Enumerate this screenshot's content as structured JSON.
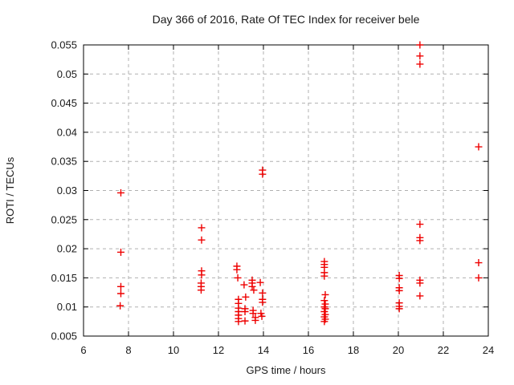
{
  "window": {
    "background": "#ffffff",
    "border_color": "#000000",
    "grid_color": "#b0b0b0",
    "text_color": "#1a1a1a"
  },
  "chart_data": {
    "type": "scatter",
    "title": "Day 366 of 2016, Rate Of TEC Index for receiver bele",
    "xlabel": "GPS time / hours",
    "ylabel": "ROTI / TECUs",
    "xlim": [
      6,
      24
    ],
    "ylim": [
      0.005,
      0.055
    ],
    "xticks": [
      6,
      8,
      10,
      12,
      14,
      16,
      18,
      20,
      22,
      24
    ],
    "yticks": [
      0.005,
      0.01,
      0.015,
      0.02,
      0.025,
      0.03,
      0.035,
      0.04,
      0.045,
      0.05,
      0.055
    ],
    "grid": {
      "show": true,
      "style": "dashed",
      "color": "#b0b0b0"
    },
    "legend": {
      "show": false
    },
    "marker": {
      "shape": "plus",
      "color": "#ee0000",
      "size": 9
    },
    "series": [
      {
        "name": "ROTI",
        "points": [
          [
            7.66,
            0.0296
          ],
          [
            7.66,
            0.0194
          ],
          [
            7.66,
            0.0135
          ],
          [
            7.66,
            0.0123
          ],
          [
            7.63,
            0.0102
          ],
          [
            11.25,
            0.0236
          ],
          [
            11.25,
            0.0215
          ],
          [
            11.25,
            0.0162
          ],
          [
            11.25,
            0.0155
          ],
          [
            11.23,
            0.0141
          ],
          [
            11.23,
            0.0135
          ],
          [
            11.23,
            0.0129
          ],
          [
            12.82,
            0.017
          ],
          [
            12.82,
            0.0164
          ],
          [
            12.86,
            0.015
          ],
          [
            12.89,
            0.0113
          ],
          [
            12.89,
            0.0106
          ],
          [
            12.89,
            0.0098
          ],
          [
            12.89,
            0.0092
          ],
          [
            12.89,
            0.0086
          ],
          [
            12.89,
            0.008
          ],
          [
            12.89,
            0.0075
          ],
          [
            13.14,
            0.0138
          ],
          [
            13.21,
            0.0117
          ],
          [
            13.18,
            0.0097
          ],
          [
            13.18,
            0.0092
          ],
          [
            13.18,
            0.0076
          ],
          [
            13.5,
            0.0146
          ],
          [
            13.5,
            0.0141
          ],
          [
            13.5,
            0.0135
          ],
          [
            13.57,
            0.0129
          ],
          [
            13.54,
            0.0094
          ],
          [
            13.54,
            0.0089
          ],
          [
            13.64,
            0.0082
          ],
          [
            13.64,
            0.0077
          ],
          [
            13.96,
            0.0335
          ],
          [
            13.96,
            0.0328
          ],
          [
            13.86,
            0.0142
          ],
          [
            13.96,
            0.0124
          ],
          [
            13.96,
            0.0113
          ],
          [
            13.96,
            0.0108
          ],
          [
            13.89,
            0.0089
          ],
          [
            13.93,
            0.0084
          ],
          [
            16.71,
            0.0178
          ],
          [
            16.71,
            0.0173
          ],
          [
            16.71,
            0.0168
          ],
          [
            16.71,
            0.0159
          ],
          [
            16.71,
            0.0153
          ],
          [
            16.75,
            0.0121
          ],
          [
            16.71,
            0.0111
          ],
          [
            16.75,
            0.0105
          ],
          [
            16.71,
            0.01
          ],
          [
            16.75,
            0.0097
          ],
          [
            16.71,
            0.0092
          ],
          [
            16.75,
            0.0087
          ],
          [
            16.71,
            0.0083
          ],
          [
            16.75,
            0.0079
          ],
          [
            16.71,
            0.0075
          ],
          [
            20.04,
            0.0154
          ],
          [
            20.04,
            0.0149
          ],
          [
            20.04,
            0.0133
          ],
          [
            20.04,
            0.0128
          ],
          [
            20.04,
            0.0107
          ],
          [
            20.04,
            0.0101
          ],
          [
            20.04,
            0.0097
          ],
          [
            20.96,
            0.055
          ],
          [
            20.96,
            0.0531
          ],
          [
            20.96,
            0.0517
          ],
          [
            20.96,
            0.0242
          ],
          [
            20.96,
            0.0219
          ],
          [
            20.96,
            0.0214
          ],
          [
            20.96,
            0.0146
          ],
          [
            20.96,
            0.0141
          ],
          [
            20.96,
            0.0119
          ],
          [
            23.57,
            0.0375
          ],
          [
            23.57,
            0.0176
          ],
          [
            23.57,
            0.015
          ]
        ]
      }
    ]
  }
}
